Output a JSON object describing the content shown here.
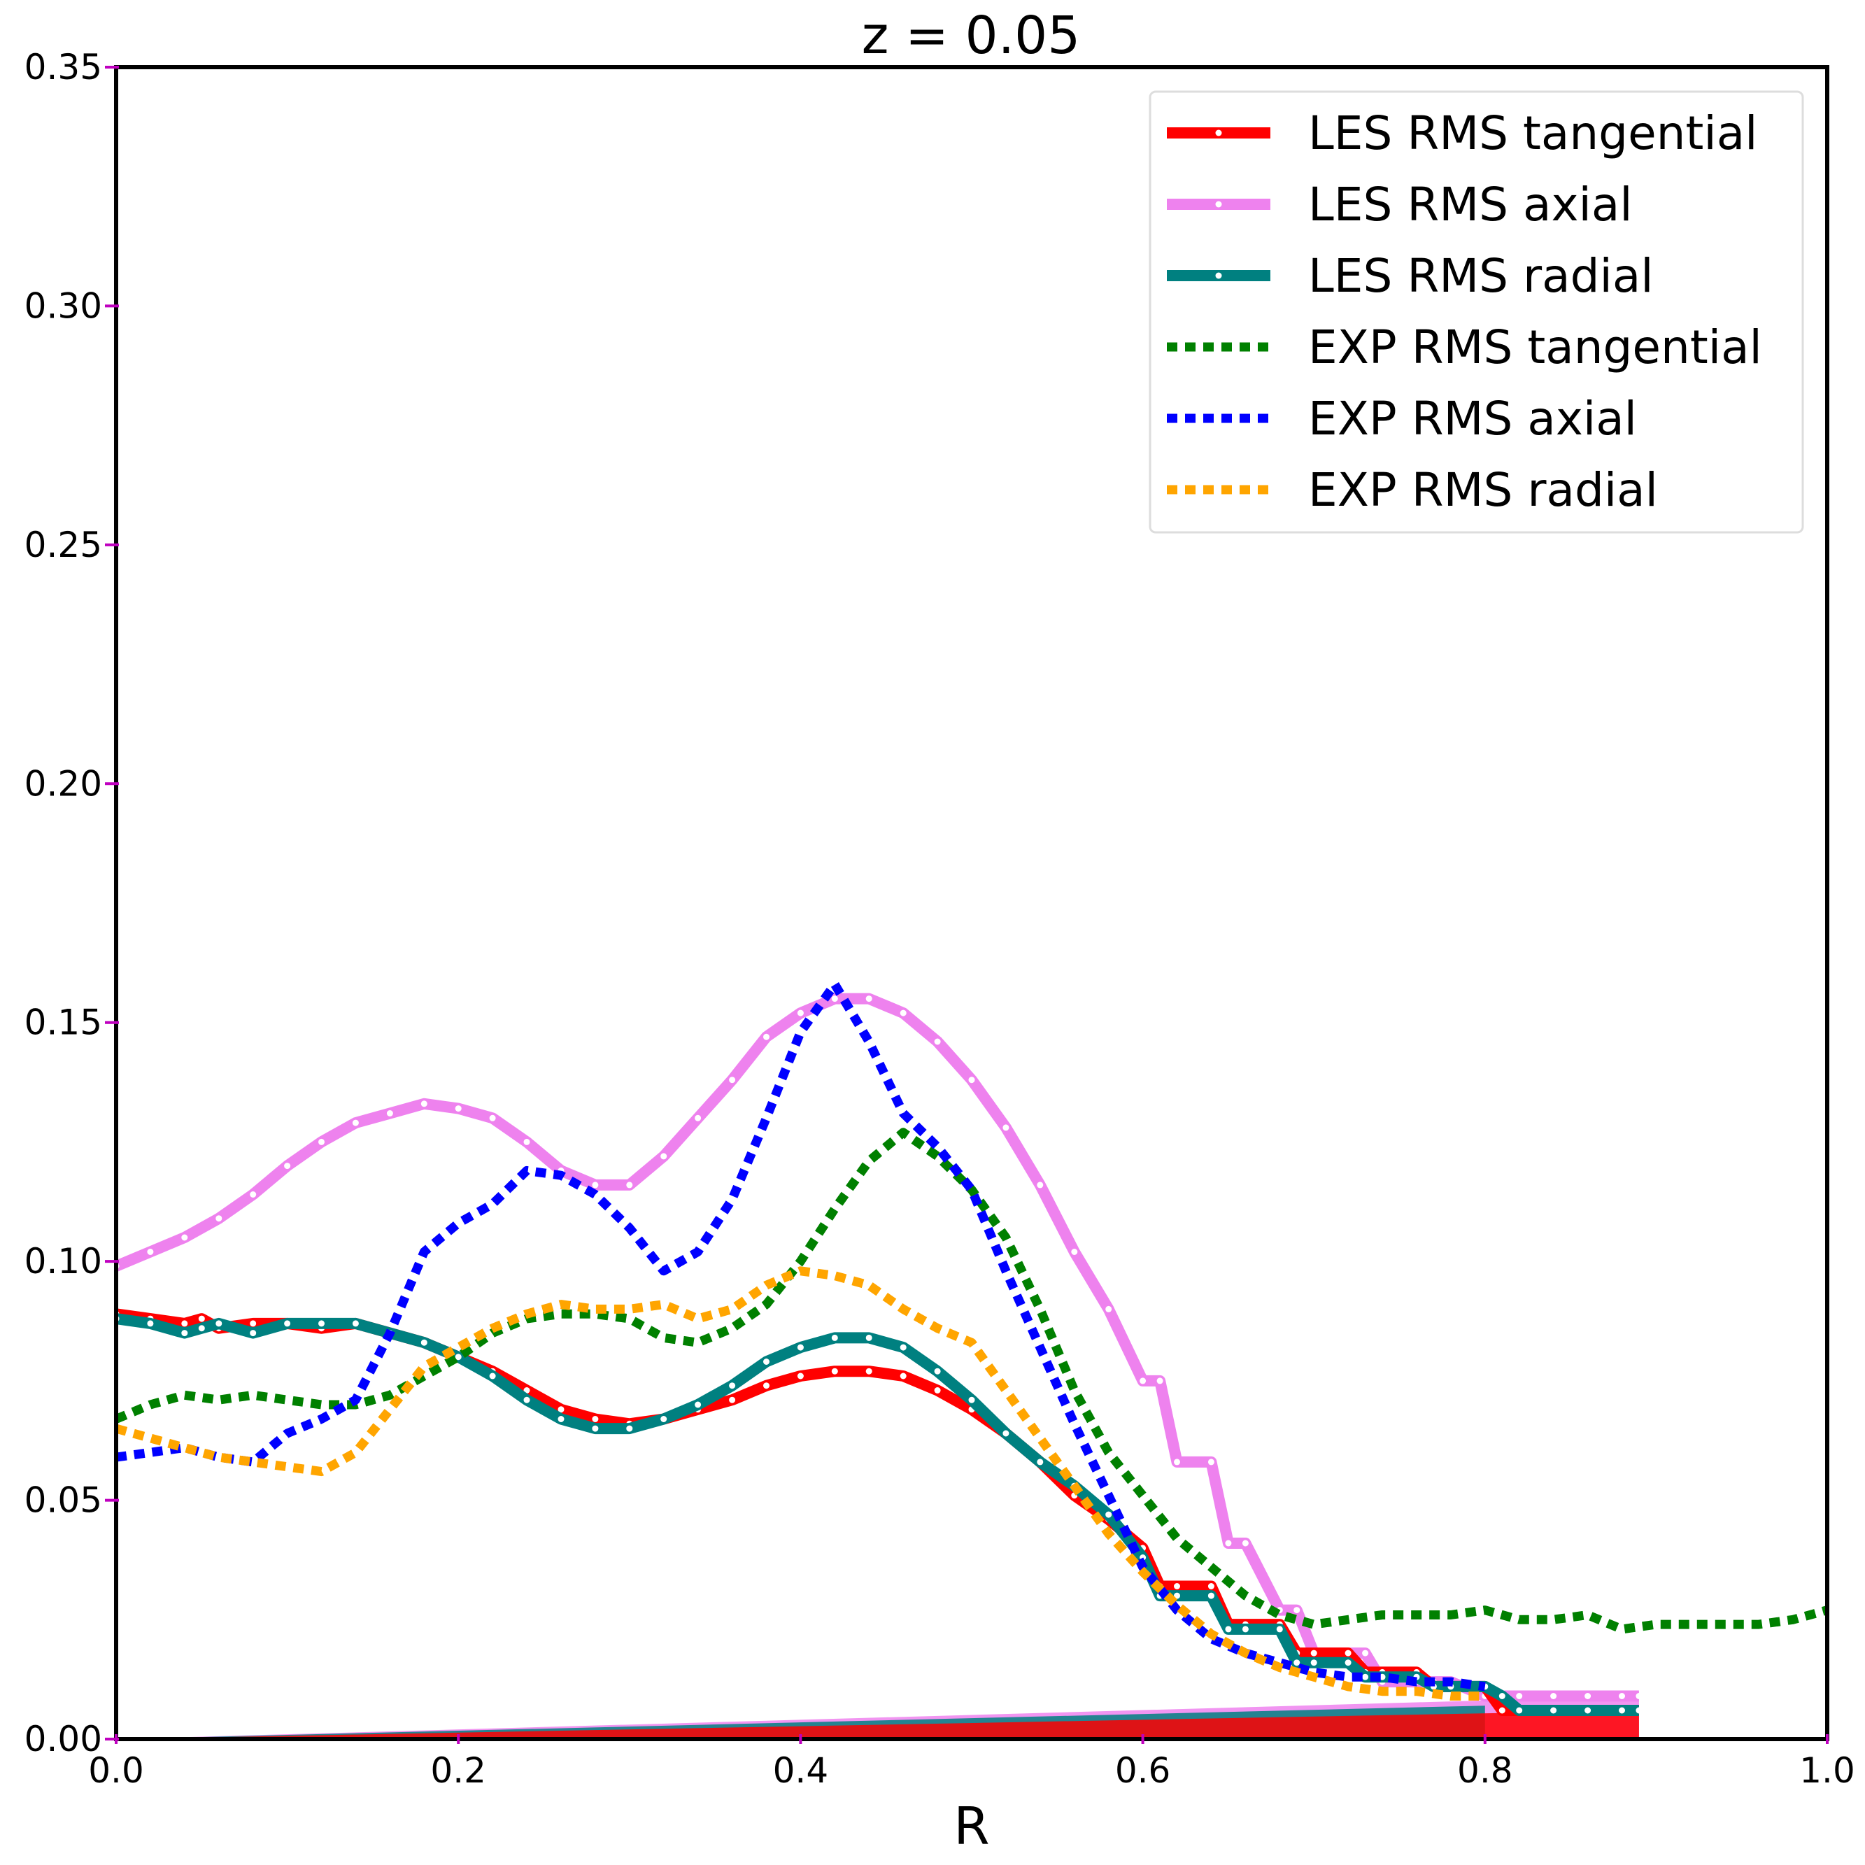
{
  "chart_data": {
    "type": "line",
    "title": "z = 0.05",
    "xlabel": "R",
    "ylabel": "",
    "xlim": [
      0.0,
      1.0
    ],
    "ylim": [
      0.0,
      0.35
    ],
    "xticks": [
      "0.0",
      "0.2",
      "0.4",
      "0.6",
      "0.8",
      "1.0"
    ],
    "yticks": [
      "0.00",
      "0.05",
      "0.10",
      "0.15",
      "0.20",
      "0.25",
      "0.30",
      "0.35"
    ],
    "grid": false,
    "legend_position": "top-right",
    "colors": {
      "les_tangential": "#ff0000",
      "les_axial": "#ee82ee",
      "les_radial": "#008080",
      "exp_tangential": "#008000",
      "exp_axial": "#0000ff",
      "exp_radial": "#ffa500",
      "tick_marks": "#bf00bf"
    },
    "series": [
      {
        "name": "LES RMS tangential",
        "style": "solid",
        "x": [
          0.0,
          0.02,
          0.04,
          0.05,
          0.06,
          0.08,
          0.1,
          0.12,
          0.14,
          0.16,
          0.18,
          0.2,
          0.22,
          0.24,
          0.26,
          0.28,
          0.3,
          0.32,
          0.34,
          0.36,
          0.38,
          0.4,
          0.42,
          0.44,
          0.46,
          0.48,
          0.5,
          0.52,
          0.54,
          0.56,
          0.58,
          0.6,
          0.61,
          0.62,
          0.64,
          0.65,
          0.66,
          0.68,
          0.69,
          0.7,
          0.72,
          0.73,
          0.74,
          0.76,
          0.77,
          0.78,
          0.8,
          0.81,
          0.82,
          0.84,
          0.86,
          0.88,
          0.89
        ],
        "y": [
          0.089,
          0.088,
          0.087,
          0.088,
          0.086,
          0.087,
          0.087,
          0.086,
          0.087,
          0.085,
          0.083,
          0.08,
          0.077,
          0.073,
          0.069,
          0.067,
          0.066,
          0.067,
          0.069,
          0.071,
          0.074,
          0.076,
          0.077,
          0.077,
          0.076,
          0.073,
          0.069,
          0.064,
          0.058,
          0.051,
          0.046,
          0.04,
          0.032,
          0.032,
          0.032,
          0.024,
          0.024,
          0.024,
          0.018,
          0.018,
          0.018,
          0.014,
          0.014,
          0.014,
          0.011,
          0.011,
          0.011,
          0.006,
          0.006,
          0.006,
          0.006,
          0.006,
          0.006
        ]
      },
      {
        "name": "LES RMS axial",
        "style": "solid",
        "x": [
          0.0,
          0.02,
          0.04,
          0.06,
          0.08,
          0.1,
          0.12,
          0.14,
          0.16,
          0.18,
          0.2,
          0.22,
          0.24,
          0.26,
          0.28,
          0.3,
          0.32,
          0.34,
          0.36,
          0.38,
          0.4,
          0.42,
          0.44,
          0.46,
          0.48,
          0.5,
          0.52,
          0.54,
          0.56,
          0.58,
          0.6,
          0.61,
          0.62,
          0.64,
          0.65,
          0.66,
          0.68,
          0.69,
          0.7,
          0.72,
          0.73,
          0.74,
          0.76,
          0.77,
          0.78,
          0.8,
          0.81,
          0.82,
          0.84,
          0.86,
          0.88,
          0.89
        ],
        "y": [
          0.099,
          0.102,
          0.105,
          0.109,
          0.114,
          0.12,
          0.125,
          0.129,
          0.131,
          0.133,
          0.132,
          0.13,
          0.125,
          0.119,
          0.116,
          0.116,
          0.122,
          0.13,
          0.138,
          0.147,
          0.152,
          0.155,
          0.155,
          0.152,
          0.146,
          0.138,
          0.128,
          0.116,
          0.102,
          0.09,
          0.075,
          0.075,
          0.058,
          0.058,
          0.041,
          0.041,
          0.027,
          0.027,
          0.018,
          0.018,
          0.018,
          0.012,
          0.012,
          0.012,
          0.012,
          0.009,
          0.009,
          0.009,
          0.009,
          0.009,
          0.009,
          0.009
        ]
      },
      {
        "name": "LES RMS radial",
        "style": "solid",
        "x": [
          0.0,
          0.02,
          0.04,
          0.05,
          0.06,
          0.08,
          0.1,
          0.12,
          0.14,
          0.16,
          0.18,
          0.2,
          0.22,
          0.24,
          0.26,
          0.28,
          0.3,
          0.32,
          0.34,
          0.36,
          0.38,
          0.4,
          0.42,
          0.44,
          0.46,
          0.48,
          0.5,
          0.52,
          0.54,
          0.56,
          0.58,
          0.6,
          0.61,
          0.62,
          0.64,
          0.65,
          0.66,
          0.68,
          0.69,
          0.7,
          0.72,
          0.73,
          0.74,
          0.76,
          0.77,
          0.78,
          0.8,
          0.81,
          0.82,
          0.84,
          0.86,
          0.88,
          0.89
        ],
        "y": [
          0.088,
          0.087,
          0.085,
          0.086,
          0.087,
          0.085,
          0.087,
          0.087,
          0.087,
          0.085,
          0.083,
          0.08,
          0.076,
          0.071,
          0.067,
          0.065,
          0.065,
          0.067,
          0.07,
          0.074,
          0.079,
          0.082,
          0.084,
          0.084,
          0.082,
          0.077,
          0.071,
          0.064,
          0.058,
          0.053,
          0.047,
          0.038,
          0.03,
          0.03,
          0.03,
          0.023,
          0.023,
          0.023,
          0.016,
          0.016,
          0.016,
          0.013,
          0.013,
          0.013,
          0.011,
          0.011,
          0.011,
          0.009,
          0.006,
          0.006,
          0.006,
          0.006,
          0.006
        ]
      },
      {
        "name": "EXP RMS tangential",
        "style": "dotted",
        "x": [
          0.0,
          0.02,
          0.04,
          0.06,
          0.08,
          0.1,
          0.12,
          0.14,
          0.16,
          0.18,
          0.2,
          0.22,
          0.24,
          0.26,
          0.28,
          0.3,
          0.32,
          0.34,
          0.36,
          0.38,
          0.4,
          0.42,
          0.44,
          0.46,
          0.48,
          0.5,
          0.52,
          0.54,
          0.56,
          0.58,
          0.6,
          0.62,
          0.64,
          0.66,
          0.68,
          0.7,
          0.72,
          0.74,
          0.76,
          0.78,
          0.8,
          0.82,
          0.84,
          0.86,
          0.88,
          0.9,
          0.92,
          0.94,
          0.96,
          0.98,
          1.0
        ],
        "y": [
          0.067,
          0.07,
          0.072,
          0.071,
          0.072,
          0.071,
          0.07,
          0.07,
          0.072,
          0.076,
          0.08,
          0.085,
          0.088,
          0.089,
          0.089,
          0.088,
          0.084,
          0.083,
          0.086,
          0.091,
          0.1,
          0.111,
          0.121,
          0.127,
          0.122,
          0.115,
          0.105,
          0.09,
          0.073,
          0.06,
          0.051,
          0.042,
          0.036,
          0.03,
          0.026,
          0.024,
          0.025,
          0.026,
          0.026,
          0.026,
          0.027,
          0.025,
          0.025,
          0.026,
          0.023,
          0.024,
          0.024,
          0.024,
          0.024,
          0.025,
          0.027
        ]
      },
      {
        "name": "EXP RMS axial",
        "style": "dotted",
        "x": [
          0.0,
          0.02,
          0.04,
          0.06,
          0.08,
          0.1,
          0.12,
          0.14,
          0.16,
          0.18,
          0.2,
          0.22,
          0.24,
          0.26,
          0.28,
          0.3,
          0.32,
          0.34,
          0.36,
          0.38,
          0.4,
          0.42,
          0.44,
          0.46,
          0.48,
          0.5,
          0.52,
          0.54,
          0.56,
          0.58,
          0.6,
          0.62,
          0.64,
          0.66,
          0.68,
          0.7,
          0.72,
          0.74,
          0.76,
          0.78,
          0.8
        ],
        "y": [
          0.059,
          0.06,
          0.061,
          0.059,
          0.058,
          0.064,
          0.067,
          0.071,
          0.085,
          0.102,
          0.108,
          0.112,
          0.119,
          0.118,
          0.114,
          0.107,
          0.098,
          0.102,
          0.113,
          0.13,
          0.148,
          0.158,
          0.146,
          0.131,
          0.124,
          0.115,
          0.098,
          0.082,
          0.066,
          0.051,
          0.036,
          0.027,
          0.021,
          0.018,
          0.016,
          0.014,
          0.013,
          0.013,
          0.012,
          0.012,
          0.011
        ]
      },
      {
        "name": "EXP RMS radial",
        "style": "dotted",
        "x": [
          0.0,
          0.02,
          0.04,
          0.06,
          0.08,
          0.1,
          0.12,
          0.14,
          0.16,
          0.18,
          0.2,
          0.22,
          0.24,
          0.26,
          0.28,
          0.3,
          0.32,
          0.34,
          0.36,
          0.38,
          0.4,
          0.42,
          0.44,
          0.46,
          0.48,
          0.5,
          0.52,
          0.54,
          0.56,
          0.58,
          0.6,
          0.62,
          0.64,
          0.66,
          0.68,
          0.7,
          0.72,
          0.74,
          0.76,
          0.78,
          0.8
        ],
        "y": [
          0.065,
          0.063,
          0.061,
          0.059,
          0.058,
          0.057,
          0.056,
          0.06,
          0.069,
          0.078,
          0.082,
          0.086,
          0.089,
          0.091,
          0.09,
          0.09,
          0.091,
          0.088,
          0.09,
          0.095,
          0.098,
          0.097,
          0.095,
          0.09,
          0.086,
          0.083,
          0.073,
          0.063,
          0.053,
          0.043,
          0.035,
          0.028,
          0.022,
          0.018,
          0.015,
          0.013,
          0.011,
          0.01,
          0.01,
          0.009,
          0.009
        ]
      }
    ]
  }
}
